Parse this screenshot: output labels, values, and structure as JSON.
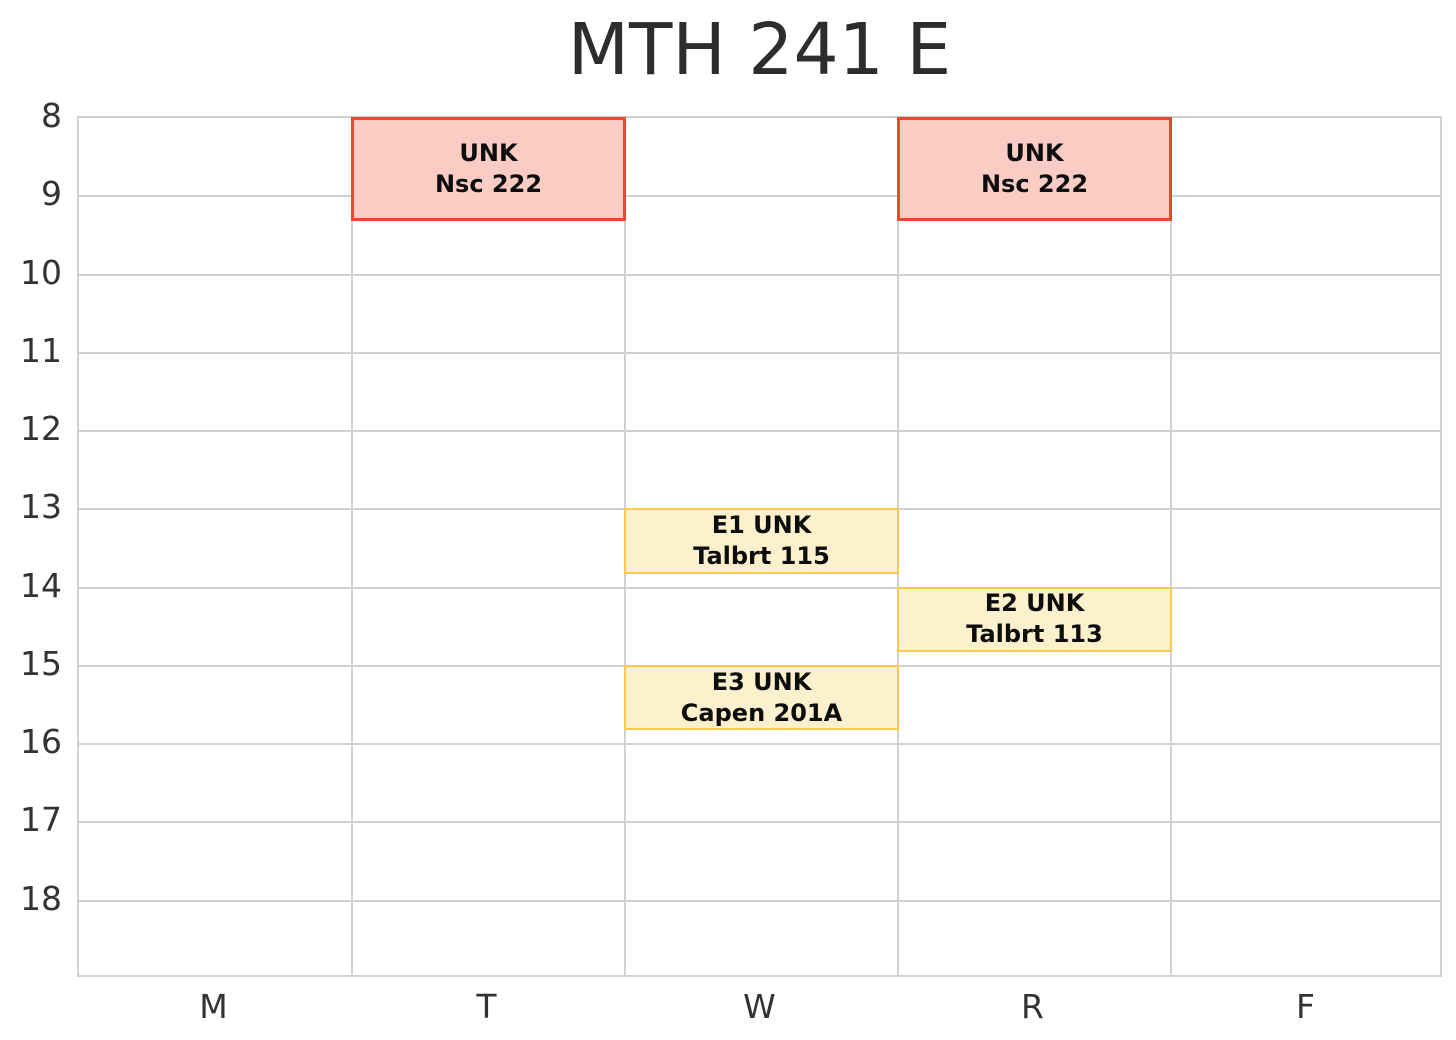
{
  "chart_data": {
    "type": "schedule",
    "title": "MTH 241 E",
    "x_labels": [
      "M",
      "T",
      "W",
      "R",
      "F"
    ],
    "y_ticks": [
      8,
      9,
      10,
      11,
      12,
      13,
      14,
      15,
      16,
      17,
      18
    ],
    "y_range": [
      8,
      19
    ],
    "grid": true,
    "colors": {
      "gridline": "#d1d1d1",
      "tick_text": "#333333",
      "title_text": "#2d2d2d",
      "lecture_fill": "#fbccc3",
      "lecture_border": "#e74b2f",
      "recitation_fill": "#fdf0cd",
      "recitation_border": "#fcc94e"
    },
    "events": [
      {
        "day": "T",
        "start": 8.0,
        "end": 9.31,
        "line1": "UNK",
        "line2": "Nsc 222",
        "kind": "lecture",
        "fill": "#fbccc3",
        "border": "#e74b2f"
      },
      {
        "day": "R",
        "start": 8.0,
        "end": 9.31,
        "line1": "UNK",
        "line2": "Nsc 222",
        "kind": "lecture",
        "fill": "#fbccc3",
        "border": "#e74b2f"
      },
      {
        "day": "W",
        "start": 13.0,
        "end": 13.82,
        "line1": "E1 UNK",
        "line2": "Talbrt 115",
        "kind": "recitation",
        "fill": "#fdf0cd",
        "border": "#fcc94e"
      },
      {
        "day": "R",
        "start": 14.0,
        "end": 14.82,
        "line1": "E2 UNK",
        "line2": "Talbrt 113",
        "kind": "recitation",
        "fill": "#fdf0cd",
        "border": "#fcc94e"
      },
      {
        "day": "W",
        "start": 15.0,
        "end": 15.82,
        "line1": "E3 UNK",
        "line2": "Capen 201A",
        "kind": "recitation",
        "fill": "#fdf0cd",
        "border": "#fcc94e"
      }
    ]
  }
}
